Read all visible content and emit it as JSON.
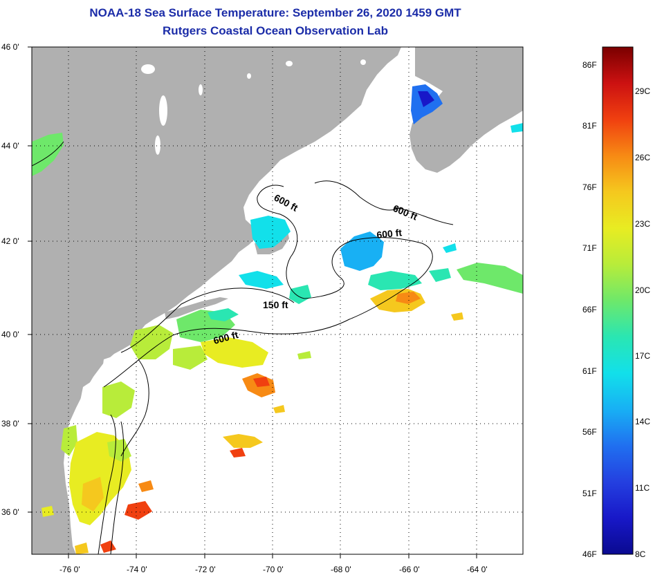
{
  "title": "NOAA-18 Sea Surface Temperature:  September 26, 2020 1459 GMT",
  "subtitle": "Rutgers Coastal Ocean Observation Lab",
  "map": {
    "lat_labels": [
      "46 0'",
      "44 0'",
      "42 0'",
      "40 0'",
      "38 0'",
      "36 0'"
    ],
    "lon_labels": [
      "-76 0'",
      "-74 0'",
      "-72 0'",
      "-70 0'",
      "-68 0'",
      "-66 0'",
      "-64 0'"
    ],
    "isobath_labels": [
      "600 ft",
      "600 ft",
      "600 ft",
      "150 ft",
      "600 ft"
    ],
    "land_color": "#b0b0b0",
    "no_data_color": "#ffffff"
  },
  "colorbar": {
    "fahrenheit_labels": [
      "86F",
      "81F",
      "76F",
      "71F",
      "66F",
      "61F",
      "56F",
      "51F",
      "46F"
    ],
    "celsius_labels": [
      "29C",
      "26C",
      "23C",
      "20C",
      "17C",
      "14C",
      "11C",
      "8C"
    ],
    "colors": [
      "#7a0000",
      "#cc1111",
      "#f04010",
      "#f78a14",
      "#f5c81e",
      "#e8ec22",
      "#b8ec3a",
      "#6ee86a",
      "#2ae6b2",
      "#12e0ea",
      "#18b0f4",
      "#2070f0",
      "#2440e0",
      "#1818c8",
      "#0a0a90"
    ]
  }
}
